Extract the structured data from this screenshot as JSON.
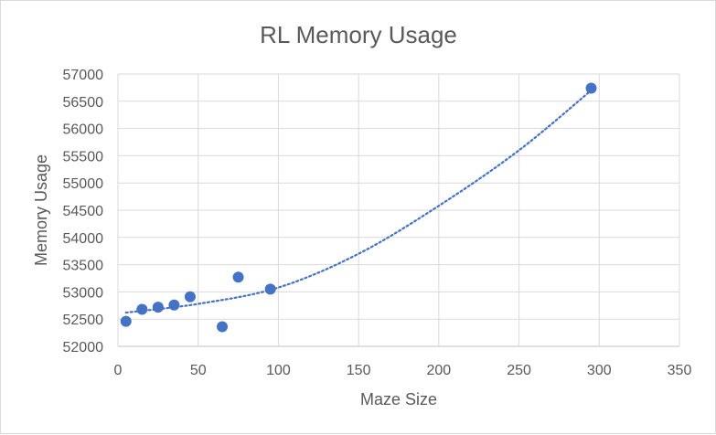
{
  "chart_data": {
    "type": "scatter",
    "title": "RL Memory Usage",
    "xlabel": "Maze Size",
    "ylabel": "Memory Usage",
    "xlim": [
      0,
      350
    ],
    "ylim": [
      52000,
      57000
    ],
    "x_ticks": [
      "0",
      "50",
      "100",
      "150",
      "200",
      "250",
      "300",
      "350"
    ],
    "y_ticks": [
      "52000",
      "52500",
      "53000",
      "53500",
      "54000",
      "54500",
      "55000",
      "55500",
      "56000",
      "56500",
      "57000"
    ],
    "grid": true,
    "series": [
      {
        "points": [
          {
            "x": 5,
            "y": 52460
          },
          {
            "x": 15,
            "y": 52680
          },
          {
            "x": 25,
            "y": 52720
          },
          {
            "x": 35,
            "y": 52760
          },
          {
            "x": 45,
            "y": 52910
          },
          {
            "x": 65,
            "y": 52360
          },
          {
            "x": 75,
            "y": 53270
          },
          {
            "x": 95,
            "y": 53050
          },
          {
            "x": 295,
            "y": 56740
          }
        ],
        "color": "#4472c4"
      }
    ],
    "trendline": {
      "type": "polynomial",
      "style": "dotted",
      "color": "#4472c4",
      "points": [
        {
          "x": 5,
          "y": 52620
        },
        {
          "x": 50,
          "y": 52780
        },
        {
          "x": 100,
          "y": 53080
        },
        {
          "x": 150,
          "y": 53700
        },
        {
          "x": 200,
          "y": 54580
        },
        {
          "x": 250,
          "y": 55600
        },
        {
          "x": 295,
          "y": 56700
        }
      ]
    }
  }
}
